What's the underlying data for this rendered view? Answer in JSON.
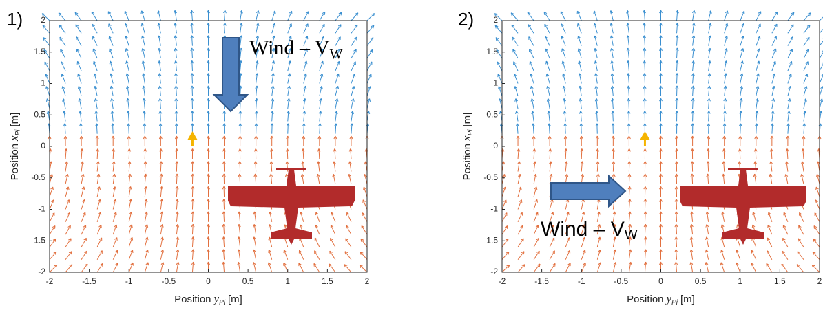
{
  "chart_data": [
    {
      "type": "quiver",
      "panel_label": "1)",
      "xlabel": {
        "text": "Position",
        "var": "y",
        "sub": "Pi",
        "unit": "[m]"
      },
      "ylabel": {
        "text": "Position",
        "var": "x",
        "sub": "Pi",
        "unit": "[m]"
      },
      "xlim": [
        -2,
        2
      ],
      "ylim": [
        -2,
        2
      ],
      "xticks": [
        -2,
        -1.5,
        -1,
        -0.5,
        0,
        0.5,
        1,
        1.5,
        2
      ],
      "yticks": [
        -2,
        -1.5,
        -1,
        -0.5,
        0,
        0.5,
        1,
        1.5,
        2
      ],
      "annotation": {
        "text": "Wind – V",
        "sub": "W"
      },
      "colors": {
        "upper": "#3a8fd0",
        "lower": "#e2703f"
      }
    },
    {
      "type": "quiver",
      "panel_label": "2)",
      "xlabel": {
        "text": "Position",
        "var": "y",
        "sub": "Pi",
        "unit": "[m]"
      },
      "ylabel": {
        "text": "Position",
        "var": "x",
        "sub": "Pi",
        "unit": "[m]"
      },
      "xlim": [
        -2,
        2
      ],
      "ylim": [
        -2,
        2
      ],
      "xticks": [
        -2,
        -1.5,
        -1,
        -0.5,
        0,
        0.5,
        1,
        1.5,
        2
      ],
      "yticks": [
        -2,
        -1.5,
        -1,
        -0.5,
        0,
        0.5,
        1,
        1.5,
        2
      ],
      "annotation": {
        "text": "Wind – V",
        "sub": "W"
      },
      "colors": {
        "upper": "#3a8fd0",
        "lower": "#e2703f"
      }
    }
  ]
}
